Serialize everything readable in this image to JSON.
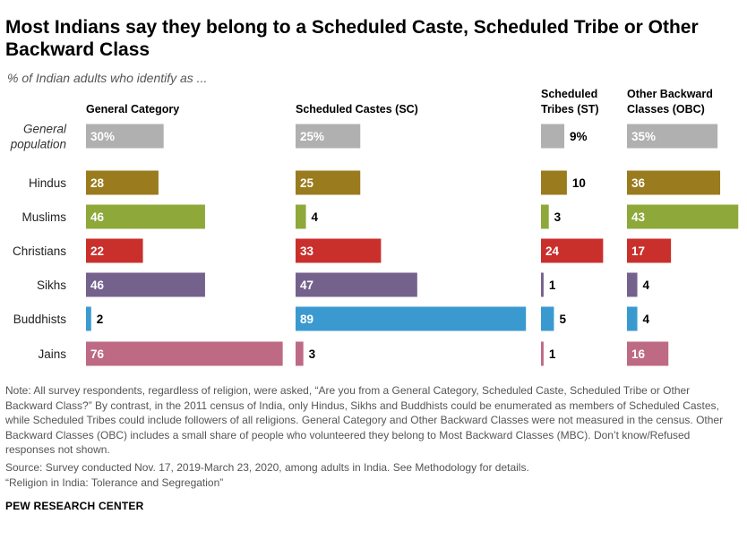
{
  "title": "Most Indians say they belong to a Scheduled Caste, Scheduled Tribe or Other Backward Class",
  "subtitle": "% of Indian adults who identify as ...",
  "note": "Note: All survey respondents, regardless of religion, were asked, “Are you from a General Category, Scheduled Caste, Scheduled Tribe or Other Backward Class?” By contrast, in the 2011 census of India, only Hindus, Sikhs and Buddhists could be enumerated as members of Scheduled Castes, while Scheduled Tribes could include followers of all religions. General Category and Other Backward Classes were not measured in the census. Other Backward Classes (OBC) includes a small share of people who volunteered they belong to Most Backward Classes (MBC). Don’t know/Refused responses not shown.",
  "source": "Source: Survey conducted Nov. 17, 2019-March 23, 2020, among adults in India. See Methodology for details.",
  "report": "“Religion in India: Tolerance and Segregation”",
  "brand": "PEW RESEARCH CENTER",
  "chart_data": {
    "type": "bar",
    "orientation": "horizontal",
    "unit": "%",
    "categories": [
      "General population",
      "Hindus",
      "Muslims",
      "Christians",
      "Sikhs",
      "Buddhists",
      "Jains"
    ],
    "category_lines": [
      [
        "General",
        "population"
      ],
      [
        "Hindus"
      ],
      [
        "Muslims"
      ],
      [
        "Christians"
      ],
      [
        "Sikhs"
      ],
      [
        "Buddhists"
      ],
      [
        "Jains"
      ]
    ],
    "category_colors": [
      "#b0b0b0",
      "#9a7b1d",
      "#8ea83a",
      "#c9302c",
      "#74628d",
      "#3a9ad0",
      "#be6a85"
    ],
    "series": [
      {
        "name": "General Category",
        "header_lines": [
          "General Category"
        ],
        "values": [
          30,
          28,
          46,
          22,
          46,
          2,
          76
        ],
        "labels": [
          "30%",
          "28",
          "46",
          "22",
          "46",
          "2",
          "76"
        ]
      },
      {
        "name": "Scheduled Castes (SC)",
        "header_lines": [
          "Scheduled Castes (SC)"
        ],
        "values": [
          25,
          25,
          4,
          33,
          47,
          89,
          3
        ],
        "labels": [
          "25%",
          "25",
          "4",
          "33",
          "47",
          "89",
          "3"
        ]
      },
      {
        "name": "Scheduled Tribes (ST)",
        "header_lines": [
          "Scheduled",
          "Tribes (ST)"
        ],
        "values": [
          9,
          10,
          3,
          24,
          1,
          5,
          1
        ],
        "labels": [
          "9%",
          "10",
          "3",
          "24",
          "1",
          "5",
          "1"
        ]
      },
      {
        "name": "Other Backward Classes (OBC)",
        "header_lines": [
          "Other Backward",
          "Classes (OBC)"
        ],
        "values": [
          35,
          36,
          43,
          17,
          4,
          4,
          16
        ],
        "labels": [
          "35%",
          "36",
          "43",
          "17",
          "4",
          "4",
          "16"
        ]
      }
    ]
  }
}
